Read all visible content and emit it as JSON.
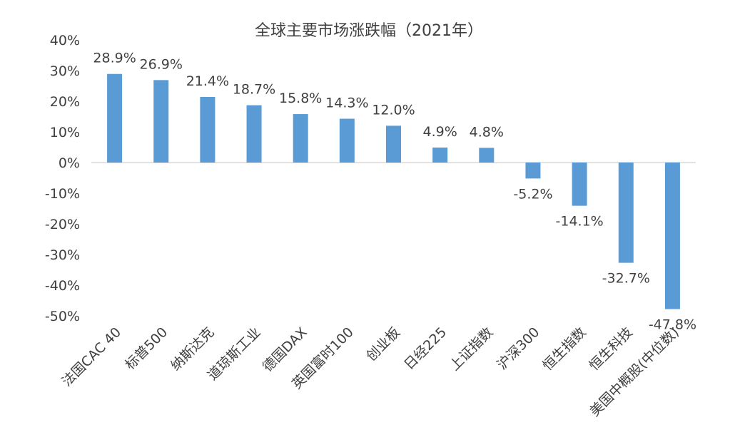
{
  "chart_data": {
    "type": "bar",
    "title": "全球主要市场涨跌幅（2021年）",
    "categories": [
      "法国CAC 40",
      "标普500",
      "纳斯达克",
      "道琼斯工业",
      "德国DAX",
      "英国富时100",
      "创业板",
      "日经225",
      "上证指数",
      "沪深300",
      "恒生指数",
      "恒生科技",
      "美国中概股(中位数)"
    ],
    "values": [
      28.9,
      26.9,
      21.4,
      18.7,
      15.8,
      14.3,
      12.0,
      4.9,
      4.8,
      -5.2,
      -14.1,
      -32.7,
      -47.8
    ],
    "data_labels": [
      "28.9%",
      "26.9%",
      "21.4%",
      "18.7%",
      "15.8%",
      "14.3%",
      "12.0%",
      "4.9%",
      "4.8%",
      "-5.2%",
      "-14.1%",
      "-32.7%",
      "-47.8%"
    ],
    "y_ticks": [
      40,
      30,
      20,
      10,
      0,
      -10,
      -20,
      -30,
      -40,
      -50
    ],
    "y_tick_labels": [
      "40%",
      "30%",
      "20%",
      "10%",
      "0%",
      "-10%",
      "-20%",
      "-30%",
      "-40%",
      "-50%"
    ],
    "ylim": [
      -50,
      40
    ],
    "xlabel": "",
    "ylabel": "",
    "grid": false,
    "legend": "none",
    "bar_color": "#5b9bd5",
    "axis_color": "#d9d9d9"
  }
}
